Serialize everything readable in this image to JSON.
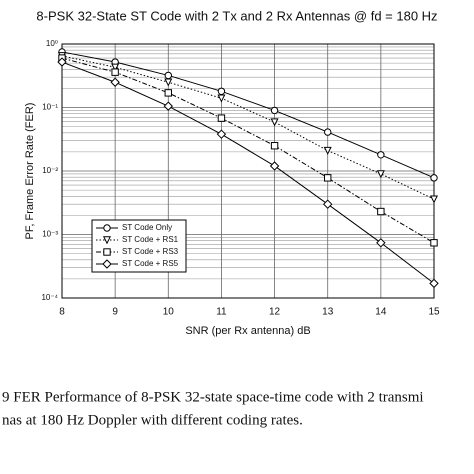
{
  "chart_data": {
    "type": "line",
    "title": "8-PSK 32-State ST Code with 2 Tx and 2 Rx Antennas @ fd = 180 Hz",
    "x_label": "SNR (per Rx antenna) dB",
    "y_label": "PF, Frame Error Rate (FER)",
    "x": [
      8,
      9,
      10,
      11,
      12,
      13,
      14,
      15
    ],
    "xlim": [
      8,
      15
    ],
    "xticks": [
      8,
      9,
      10,
      11,
      12,
      13,
      14,
      15
    ],
    "ylim": [
      0.0001,
      1
    ],
    "log_y": true,
    "grid": true,
    "legend": "lower left",
    "yticks": [
      {
        "value": 1,
        "label": "10⁰"
      },
      {
        "value": 0.1,
        "label": "10⁻¹"
      },
      {
        "value": 0.01,
        "label": "10⁻²"
      },
      {
        "value": 0.001,
        "label": "10⁻³"
      },
      {
        "value": 0.0001,
        "label": "10⁻⁴"
      }
    ],
    "series": [
      {
        "name": "ST Code Only",
        "color": "#000000",
        "marker": "circle",
        "line_style": "solid",
        "values": [
          0.75,
          0.52,
          0.32,
          0.18,
          0.09,
          0.041,
          0.018,
          0.0078
        ]
      },
      {
        "name": "ST Code + RS1",
        "color": "#000000",
        "marker": "triangle-down",
        "line_style": "dotted",
        "values": [
          0.65,
          0.43,
          0.25,
          0.14,
          0.059,
          0.021,
          0.009,
          0.0036
        ]
      },
      {
        "name": "ST Code + RS3",
        "color": "#000000",
        "marker": "square",
        "line_style": "dashdot",
        "values": [
          0.6,
          0.36,
          0.17,
          0.068,
          0.025,
          0.0078,
          0.0023,
          0.00074
        ]
      },
      {
        "name": "ST Code + RS5",
        "color": "#000000",
        "marker": "diamond",
        "line_style": "solid",
        "values": [
          0.52,
          0.25,
          0.105,
          0.038,
          0.012,
          0.003,
          0.00074,
          0.00017
        ]
      }
    ]
  },
  "caption": {
    "lines": [
      "9   FER Performance of 8-PSK 32-state space-time code with 2 transmi",
      "nas at 180 Hz Doppler with different coding rates."
    ]
  }
}
